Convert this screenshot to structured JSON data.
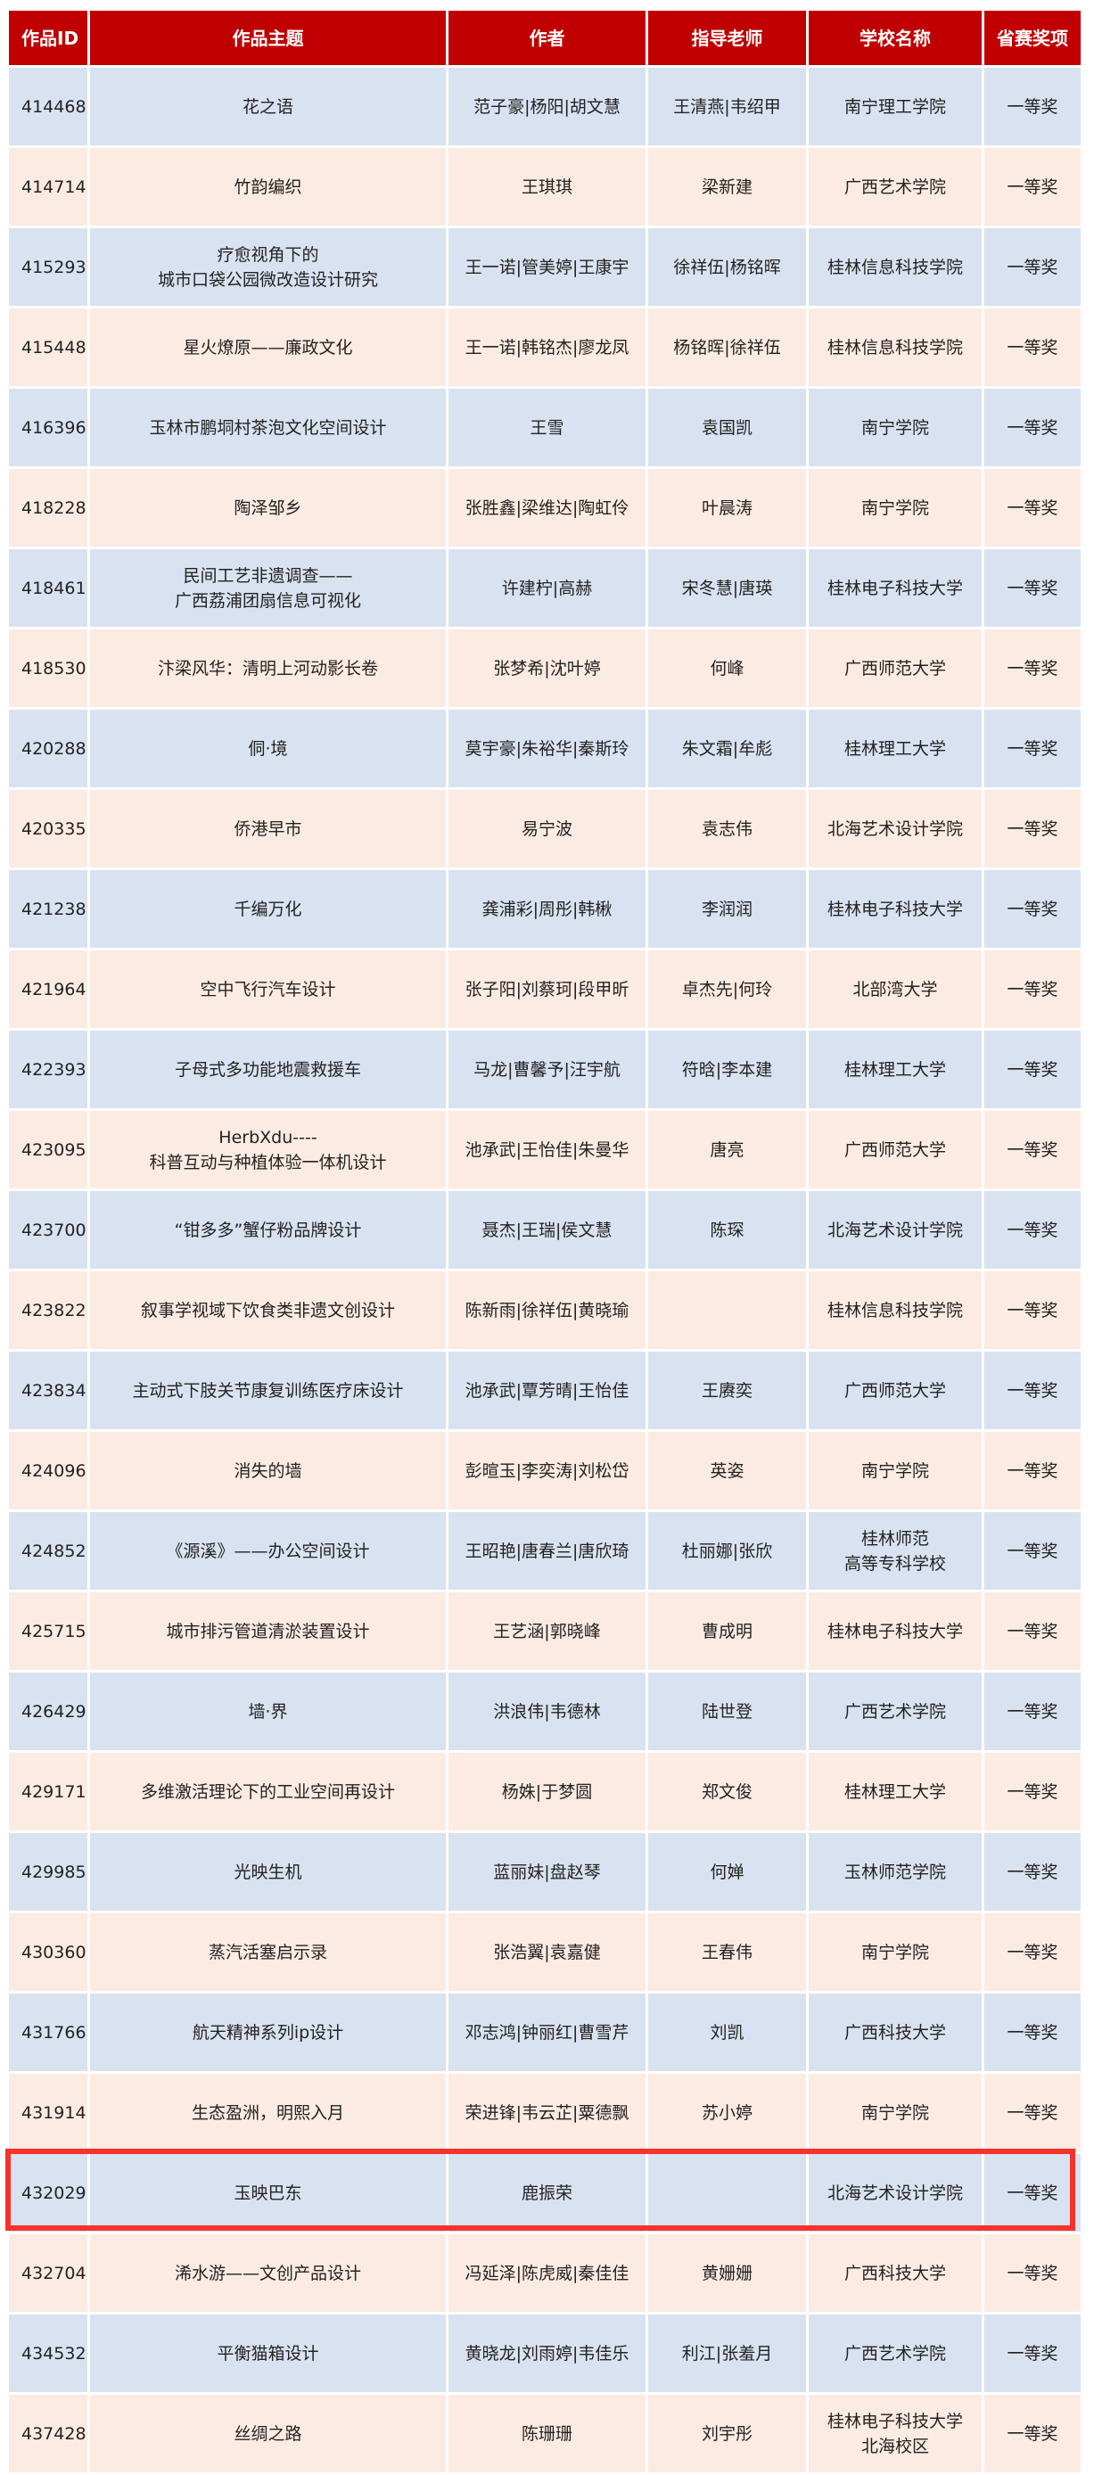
{
  "table": {
    "headers": [
      "作品ID",
      "作品主题",
      "作者",
      "指导老师",
      "学校名称",
      "省赛奖项"
    ],
    "rows": [
      [
        "414468",
        "花之语",
        "范子豪|杨阳|胡文慧",
        "王清燕|韦绍甲",
        "南宁理工学院",
        "一等奖"
      ],
      [
        "414714",
        "竹韵编织",
        "王琪琪",
        "梁新建",
        "广西艺术学院",
        "一等奖"
      ],
      [
        "415293",
        "疗愈视角下的\n城市口袋公园微改造设计研究",
        "王一诺|管美婷|王康宇",
        "徐祥伍|杨铭晖",
        "桂林信息科技学院",
        "一等奖"
      ],
      [
        "415448",
        "星火燎原——廉政文化",
        "王一诺|韩铭杰|廖龙凤",
        "杨铭晖|徐祥伍",
        "桂林信息科技学院",
        "一等奖"
      ],
      [
        "416396",
        "玉林市鹏垌村茶泡文化空间设计",
        "王雪",
        "袁国凯",
        "南宁学院",
        "一等奖"
      ],
      [
        "418228",
        "陶泽邹乡",
        "张胜鑫|梁维达|陶虹伶",
        "叶晨涛",
        "南宁学院",
        "一等奖"
      ],
      [
        "418461",
        "民间工艺非遗调查——\n广西荔浦团扇信息可视化",
        "许建柠|高赫",
        "宋冬慧|唐瑛",
        "桂林电子科技大学",
        "一等奖"
      ],
      [
        "418530",
        "汴梁风华：清明上河动影长卷",
        "张梦希|沈叶婷",
        "何峰",
        "广西师范大学",
        "一等奖"
      ],
      [
        "420288",
        "侗·境",
        "莫宇豪|朱裕华|秦斯玲",
        "朱文霜|牟彪",
        "桂林理工大学",
        "一等奖"
      ],
      [
        "420335",
        "侨港早市",
        "易宁波",
        "袁志伟",
        "北海艺术设计学院",
        "一等奖"
      ],
      [
        "421238",
        "千编万化",
        "龚浦彩|周彤|韩楸",
        "李润润",
        "桂林电子科技大学",
        "一等奖"
      ],
      [
        "421964",
        "空中飞行汽车设计",
        "张子阳|刘蔡珂|段甲昕",
        "卓杰先|何玲",
        "北部湾大学",
        "一等奖"
      ],
      [
        "422393",
        "子母式多功能地震救援车",
        "马龙|曹馨予|汪宇航",
        "符晗|李本建",
        "桂林理工大学",
        "一等奖"
      ],
      [
        "423095",
        "HerbXdu----\n科普互动与种植体验一体机设计",
        "池承武|王怡佳|朱曼华",
        "唐亮",
        "广西师范大学",
        "一等奖"
      ],
      [
        "423700",
        "“钳多多”蟹仔粉品牌设计",
        "聂杰|王瑞|侯文慧",
        "陈琛",
        "北海艺术设计学院",
        "一等奖"
      ],
      [
        "423822",
        "叙事学视域下饮食类非遗文创设计",
        "陈新雨|徐祥伍|黄晓瑜",
        "",
        "桂林信息科技学院",
        "一等奖"
      ],
      [
        "423834",
        "主动式下肢关节康复训练医疗床设计",
        "池承武|覃芳晴|王怡佳",
        "王赓奕",
        "广西师范大学",
        "一等奖"
      ],
      [
        "424096",
        "消失的墙",
        "彭暄玉|李奕涛|刘松岱",
        "英姿",
        "南宁学院",
        "一等奖"
      ],
      [
        "424852",
        "《源溪》——办公空间设计",
        "王昭艳|唐春兰|唐欣琦",
        "杜丽娜|张欣",
        "桂林师范\n高等专科学校",
        "一等奖"
      ],
      [
        "425715",
        "城市排污管道清淤装置设计",
        "王艺涵|郭晓峰",
        "曹成明",
        "桂林电子科技大学",
        "一等奖"
      ],
      [
        "426429",
        "墙·界",
        "洪浪伟|韦德林",
        "陆世登",
        "广西艺术学院",
        "一等奖"
      ],
      [
        "429171",
        "多维激活理论下的工业空间再设计",
        "杨姝|于梦圆",
        "郑文俊",
        "桂林理工大学",
        "一等奖"
      ],
      [
        "429985",
        "光映生机",
        "蓝丽妹|盘赵琴",
        "何婵",
        "玉林师范学院",
        "一等奖"
      ],
      [
        "430360",
        "蒸汽活塞启示录",
        "张浩翼|袁嘉健",
        "王春伟",
        "南宁学院",
        "一等奖"
      ],
      [
        "431766",
        "航天精神系列ip设计",
        "邓志鸿|钟丽红|曹雪芹",
        "刘凯",
        "广西科技大学",
        "一等奖"
      ],
      [
        "431914",
        "生态盈洲，明熙入月",
        "荣进锋|韦云芷|粟德飘",
        "苏小婷",
        "南宁学院",
        "一等奖"
      ],
      [
        "432029",
        "玉映巴东",
        "鹿振荣",
        "",
        "北海艺术设计学院",
        "一等奖"
      ],
      [
        "432704",
        "浠水游——文创产品设计",
        "冯延泽|陈虎威|秦佳佳",
        "黄姗姗",
        "广西科技大学",
        "一等奖"
      ],
      [
        "434532",
        "平衡猫箱设计",
        "黄晓龙|刘雨婷|韦佳乐",
        "利江|张羞月",
        "广西艺术学院",
        "一等奖"
      ],
      [
        "437428",
        "丝绸之路",
        "陈珊珊",
        "刘宇彤",
        "桂林电子科技大学\n北海校区",
        "一等奖"
      ]
    ],
    "highlighted_row_id": "432029"
  },
  "colors": {
    "header_bg": "#c00000",
    "row_blue": "#d9e2f0",
    "row_pink": "#fcebe2",
    "highlight_border": "#f4332b"
  }
}
